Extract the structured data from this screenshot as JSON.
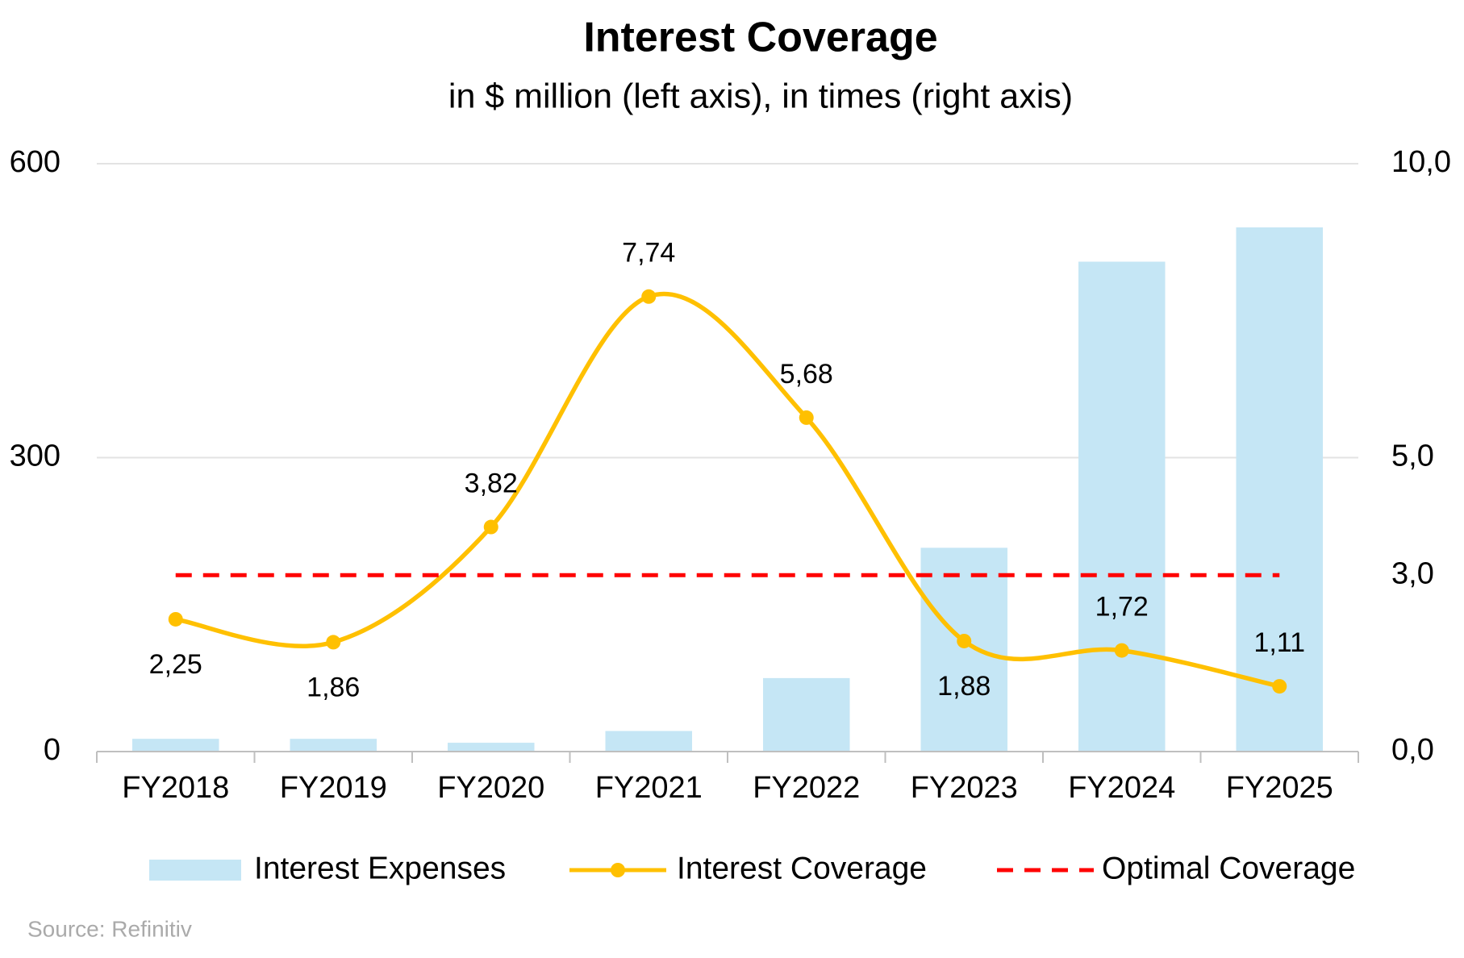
{
  "chart_data": {
    "type": "combo",
    "title": "Interest Coverage",
    "subtitle": "in $ million (left axis), in times (right axis)",
    "source": "Source: Refinitiv",
    "categories": [
      "FY2018",
      "FY2019",
      "FY2020",
      "FY2021",
      "FY2022",
      "FY2023",
      "FY2024",
      "FY2025"
    ],
    "series": [
      {
        "name": "Interest Expenses",
        "type": "bar",
        "color": "#c5e6f5",
        "axis": "y",
        "values": [
          13,
          13,
          9,
          21,
          75,
          208,
          500,
          535
        ]
      },
      {
        "name": "Interest Coverage",
        "type": "line",
        "smooth": true,
        "markers": true,
        "color": "#ffc000",
        "axis": "y2",
        "values": [
          2.25,
          1.86,
          3.82,
          7.74,
          5.68,
          1.88,
          1.72,
          1.11
        ],
        "value_labels": [
          "2,25",
          "1,86",
          "3,82",
          "7,74",
          "5,68",
          "1,88",
          "1,72",
          "1,11"
        ]
      },
      {
        "name": "Optimal Coverage",
        "type": "line",
        "dashed": true,
        "color": "#ff0000",
        "axis": "y2",
        "values": [
          3,
          3,
          3,
          3,
          3,
          3,
          3,
          3
        ]
      }
    ],
    "ylim": [
      0,
      600
    ],
    "yticks": [
      0,
      300,
      600
    ],
    "y2lim": [
      0,
      10
    ],
    "y2ticks": [
      {
        "value": 0,
        "label": "0,0"
      },
      {
        "value": 3,
        "label": "3,0"
      },
      {
        "value": 5,
        "label": "5,0"
      },
      {
        "value": 10,
        "label": "10,0"
      }
    ],
    "grid": true,
    "legend": "bottom"
  }
}
